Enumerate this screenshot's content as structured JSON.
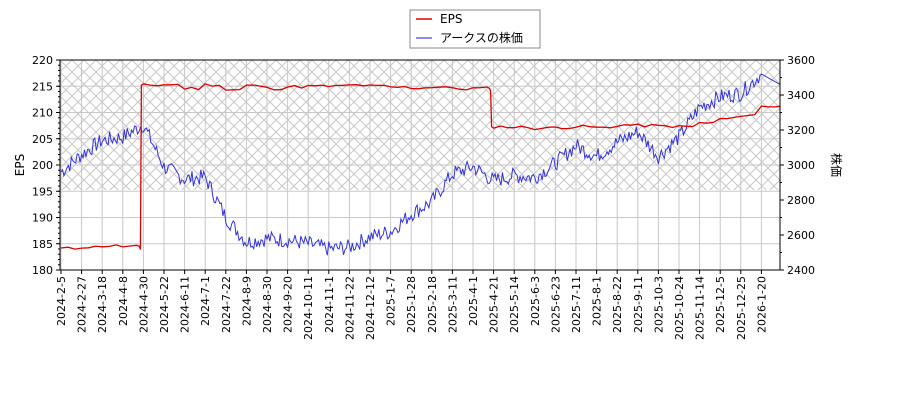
{
  "legend": {
    "items": [
      {
        "label": "EPS",
        "color": "#dd0000"
      },
      {
        "label": "アークスの株価",
        "color": "#3333dd"
      }
    ]
  },
  "axes": {
    "left_title": "EPS",
    "right_title": "株価",
    "left_ticks": [
      "180",
      "185",
      "190",
      "195",
      "200",
      "205",
      "210",
      "215",
      "220"
    ],
    "right_ticks": [
      "2400",
      "2600",
      "2800",
      "3000",
      "3200",
      "3400",
      "3600"
    ],
    "x_ticks": [
      "2024-2-5",
      "2024-2-27",
      "2024-3-18",
      "2024-4-8",
      "2024-4-30",
      "2024-5-22",
      "2024-6-11",
      "2024-7-1",
      "2024-7-22",
      "2024-8-9",
      "2024-8-30",
      "2024-9-20",
      "2024-10-11",
      "2024-11-1",
      "2024-11-22",
      "2024-12-12",
      "2025-1-7",
      "2025-1-28",
      "2025-2-18",
      "2025-3-11",
      "2025-4-1",
      "2025-4-21",
      "2025-5-14",
      "2025-6-3",
      "2025-6-23",
      "2025-7-11",
      "2025-8-1",
      "2025-8-22",
      "2025-9-11",
      "2025-10-3",
      "2025-10-24",
      "2025-11-14",
      "2025-12-5",
      "2025-12-25",
      "2026-1-20"
    ]
  },
  "chart_data": {
    "type": "line",
    "title": "",
    "xlabel": "",
    "ylabel": "EPS",
    "y2label": "株価",
    "ylim": [
      180,
      220
    ],
    "y2lim": [
      2400,
      3600
    ],
    "grid": true,
    "legend_position": "top-center",
    "hatched_region_y2": [
      2857,
      3600
    ],
    "categories": [
      "2024-2-5",
      "2024-2-27",
      "2024-3-18",
      "2024-4-8",
      "2024-4-30",
      "2024-5-22",
      "2024-6-11",
      "2024-7-1",
      "2024-7-22",
      "2024-8-9",
      "2024-8-30",
      "2024-9-20",
      "2024-10-11",
      "2024-11-1",
      "2024-11-22",
      "2024-12-12",
      "2025-1-7",
      "2025-1-28",
      "2025-2-18",
      "2025-3-11",
      "2025-4-1",
      "2025-4-21",
      "2025-5-14",
      "2025-6-3",
      "2025-6-23",
      "2025-7-11",
      "2025-8-1",
      "2025-8-22",
      "2025-9-11",
      "2025-10-3",
      "2025-10-24",
      "2025-11-14",
      "2025-12-5",
      "2025-12-25",
      "2026-1-20"
    ],
    "series": [
      {
        "name": "EPS",
        "axis": "left",
        "color": "#dd0000",
        "values": [
          184.1,
          184.4,
          184.6,
          184.5,
          215.2,
          215.3,
          214.6,
          215.3,
          214.3,
          215.1,
          214.6,
          214.9,
          215.0,
          215.0,
          215.2,
          215.0,
          214.8,
          214.7,
          214.9,
          214.5,
          214.6,
          207.3,
          207.2,
          207.0,
          207.2,
          207.3,
          207.1,
          207.6,
          207.5,
          207.4,
          207.3,
          208.0,
          208.8,
          209.5,
          211.2
        ]
      },
      {
        "name": "アークスの株価",
        "axis": "right",
        "color": "#3333dd",
        "values": [
          2960,
          3060,
          3140,
          3160,
          3230,
          2990,
          2920,
          2930,
          2700,
          2560,
          2580,
          2570,
          2550,
          2520,
          2530,
          2590,
          2620,
          2720,
          2790,
          2950,
          2990,
          2910,
          2940,
          2930,
          3010,
          3110,
          3050,
          3130,
          3190,
          3050,
          3160,
          3330,
          3390,
          3410,
          3520
        ]
      }
    ]
  }
}
